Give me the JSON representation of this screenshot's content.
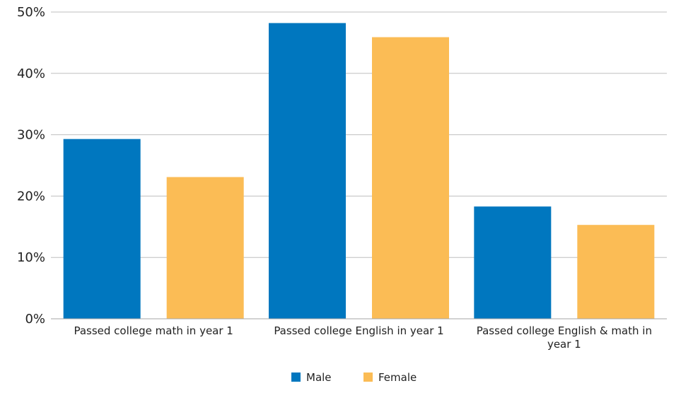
{
  "chart_data": {
    "type": "bar",
    "title": "",
    "xlabel": "",
    "ylabel": "",
    "categories": [
      [
        "Passed college math in year 1"
      ],
      [
        "Passed college English in year 1"
      ],
      [
        "Passed college English & math in",
        "year 1"
      ]
    ],
    "series": [
      {
        "name": "Male",
        "color": "#0077BF",
        "values": [
          29.3,
          48.2,
          18.3
        ]
      },
      {
        "name": "Female",
        "color": "#FBBC55",
        "values": [
          23.1,
          45.9,
          15.3
        ]
      }
    ],
    "ylim": [
      0,
      50
    ],
    "y_ticks": [
      0,
      10,
      20,
      30,
      40,
      50
    ],
    "y_tick_labels": [
      "0%",
      "10%",
      "20%",
      "30%",
      "40%",
      "50%"
    ],
    "grid": true,
    "legend_position": "bottom",
    "colors": {
      "gridline": "#BFBFBF",
      "axis": "#A6A6A6"
    }
  }
}
